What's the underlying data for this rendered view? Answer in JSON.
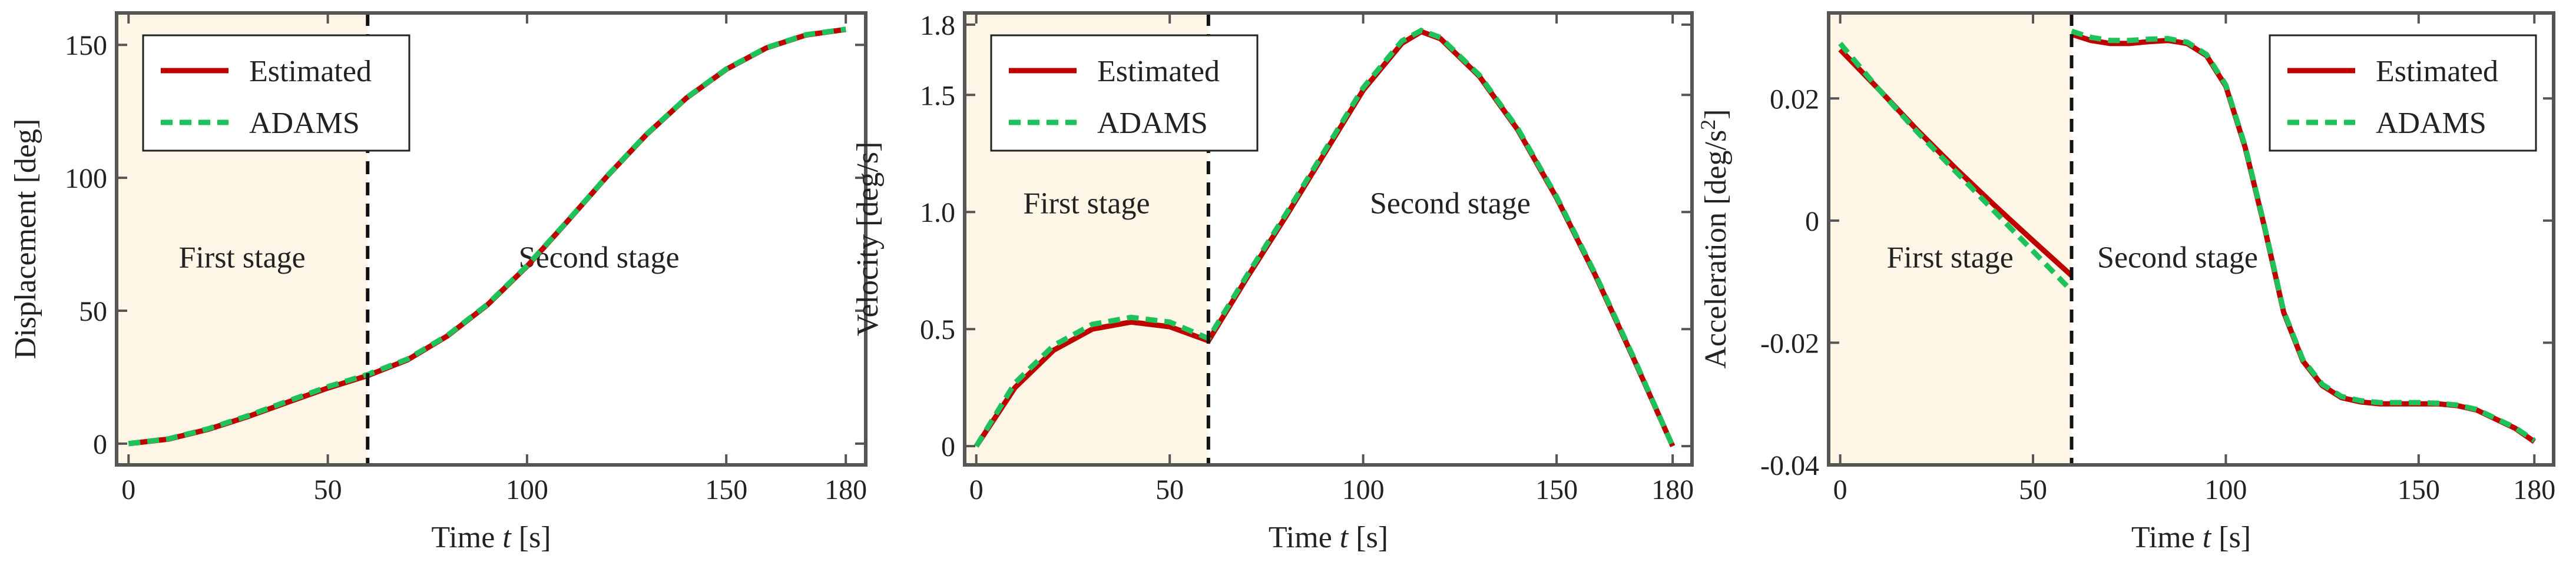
{
  "colors": {
    "estimated": "#c00000",
    "adams": "#1fc15a",
    "first_stage_bg": "#fdf6e6",
    "frame": "#555555"
  },
  "chart_data": [
    {
      "type": "line",
      "xlabel_prefix": "Time ",
      "xlabel_var": "t",
      "xlabel_suffix": " [s]",
      "ylabel": "Displacement [deg]",
      "ylabel_super": "",
      "ylabel_tail": "",
      "xlim": [
        -3,
        185
      ],
      "ylim": [
        -8,
        162
      ],
      "xticks": [
        0,
        50,
        100,
        150,
        180
      ],
      "xtick_labels": [
        "0",
        "50",
        "100",
        "150",
        "180"
      ],
      "yticks": [
        0,
        50,
        100,
        150
      ],
      "ytick_labels": [
        "0",
        "50",
        "100",
        "150"
      ],
      "stage_split": 60,
      "stages": [
        "First stage",
        "Second stage"
      ],
      "legend": [
        "Estimated",
        "ADAMS"
      ],
      "legend_position": "top-left",
      "series": [
        {
          "name": "Estimated",
          "x": [
            0,
            10,
            20,
            30,
            40,
            50,
            60,
            70,
            80,
            90,
            100,
            110,
            120,
            130,
            140,
            150,
            160,
            170,
            180
          ],
          "y": [
            0,
            1.7,
            5.4,
            10.2,
            15.6,
            20.9,
            25.6,
            31.5,
            40.5,
            52.1,
            66.7,
            83.4,
            100.4,
            116.3,
            130.0,
            140.8,
            148.8,
            153.7,
            155.8
          ]
        },
        {
          "name": "ADAMS",
          "x": [
            0,
            10,
            20,
            30,
            40,
            50,
            60,
            70,
            80,
            90,
            100,
            110,
            120,
            130,
            140,
            150,
            160,
            170,
            180
          ],
          "y": [
            0,
            1.8,
            5.6,
            10.5,
            16.0,
            21.4,
            26.0,
            31.8,
            40.7,
            52.3,
            66.9,
            83.5,
            100.5,
            116.4,
            130.1,
            140.9,
            148.9,
            153.8,
            155.9
          ]
        }
      ]
    },
    {
      "type": "line",
      "xlabel_prefix": "Time ",
      "xlabel_var": "t",
      "xlabel_suffix": " [s]",
      "ylabel": "Velocity [deg/s]",
      "ylabel_super": "",
      "ylabel_tail": "",
      "xlim": [
        -3,
        185
      ],
      "ylim": [
        -0.08,
        1.85
      ],
      "xticks": [
        0,
        50,
        100,
        150,
        180
      ],
      "xtick_labels": [
        "0",
        "50",
        "100",
        "150",
        "180"
      ],
      "yticks": [
        0,
        0.5,
        1.0,
        1.5,
        1.8
      ],
      "ytick_labels": [
        "0",
        "0.5",
        "1.0",
        "1.5",
        "1.8"
      ],
      "stage_split": 60,
      "stages": [
        "First stage",
        "Second stage"
      ],
      "legend": [
        "Estimated",
        "ADAMS"
      ],
      "legend_position": "top-left",
      "series": [
        {
          "name": "Estimated",
          "x": [
            0,
            10,
            20,
            30,
            40,
            50,
            60,
            70,
            80,
            90,
            100,
            110,
            115,
            120,
            130,
            140,
            150,
            160,
            170,
            180
          ],
          "y": [
            0,
            0.25,
            0.41,
            0.5,
            0.53,
            0.51,
            0.45,
            0.72,
            0.98,
            1.25,
            1.52,
            1.72,
            1.77,
            1.74,
            1.58,
            1.35,
            1.06,
            0.73,
            0.37,
            0
          ]
        },
        {
          "name": "ADAMS",
          "x": [
            0,
            10,
            20,
            30,
            40,
            50,
            60,
            70,
            80,
            90,
            100,
            110,
            115,
            120,
            130,
            140,
            150,
            160,
            170,
            180
          ],
          "y": [
            0,
            0.27,
            0.43,
            0.52,
            0.55,
            0.53,
            0.46,
            0.73,
            0.99,
            1.26,
            1.53,
            1.73,
            1.775,
            1.745,
            1.585,
            1.355,
            1.065,
            0.735,
            0.375,
            0
          ]
        }
      ]
    },
    {
      "type": "line",
      "xlabel_prefix": "Time ",
      "xlabel_var": "t",
      "xlabel_suffix": " [s]",
      "ylabel": "Acceleration [deg/s",
      "ylabel_super": "2",
      "ylabel_tail": "]",
      "xlim": [
        -3,
        185
      ],
      "ylim": [
        -0.04,
        0.034
      ],
      "xticks": [
        0,
        50,
        100,
        150,
        180
      ],
      "xtick_labels": [
        "0",
        "50",
        "100",
        "150",
        "180"
      ],
      "yticks": [
        0.02,
        0,
        -0.02,
        -0.04
      ],
      "ytick_labels": [
        "0.02",
        "0",
        "-0.02",
        "-0.04"
      ],
      "stage_split": 60,
      "stages": [
        "First stage",
        "Second stage"
      ],
      "legend": [
        "Estimated",
        "ADAMS"
      ],
      "legend_position": "top-right",
      "series": [
        {
          "name": "Estimated",
          "x": [
            0,
            10,
            20,
            30,
            40,
            50,
            60,
            null,
            60,
            65,
            70,
            75,
            80,
            85,
            90,
            95,
            100,
            105,
            110,
            115,
            120,
            125,
            130,
            135,
            140,
            145,
            150,
            155,
            160,
            165,
            170,
            175,
            180
          ],
          "y": [
            0.028,
            0.0215,
            0.0148,
            0.0085,
            0.0025,
            -0.0033,
            -0.009,
            null,
            0.0305,
            0.0295,
            0.029,
            0.029,
            0.0293,
            0.0295,
            0.029,
            0.027,
            0.022,
            0.012,
            -0.001,
            -0.015,
            -0.023,
            -0.027,
            -0.029,
            -0.0297,
            -0.03,
            -0.03,
            -0.03,
            -0.03,
            -0.0303,
            -0.031,
            -0.0325,
            -0.034,
            -0.0362
          ]
        },
        {
          "name": "ADAMS",
          "x": [
            0,
            10,
            20,
            30,
            40,
            50,
            60,
            null,
            60,
            65,
            70,
            75,
            80,
            85,
            90,
            95,
            100,
            105,
            110,
            115,
            120,
            125,
            130,
            135,
            140,
            145,
            150,
            155,
            160,
            165,
            170,
            175,
            180
          ],
          "y": [
            0.029,
            0.0215,
            0.0145,
            0.008,
            0.0015,
            -0.005,
            -0.0115,
            null,
            0.031,
            0.03,
            0.0295,
            0.0295,
            0.0297,
            0.0298,
            0.0292,
            0.0272,
            0.0222,
            0.0122,
            -0.0008,
            -0.0148,
            -0.0228,
            -0.0268,
            -0.0288,
            -0.0295,
            -0.0298,
            -0.0298,
            -0.0298,
            -0.0299,
            -0.0302,
            -0.0309,
            -0.0324,
            -0.0339,
            -0.036
          ]
        }
      ]
    }
  ]
}
